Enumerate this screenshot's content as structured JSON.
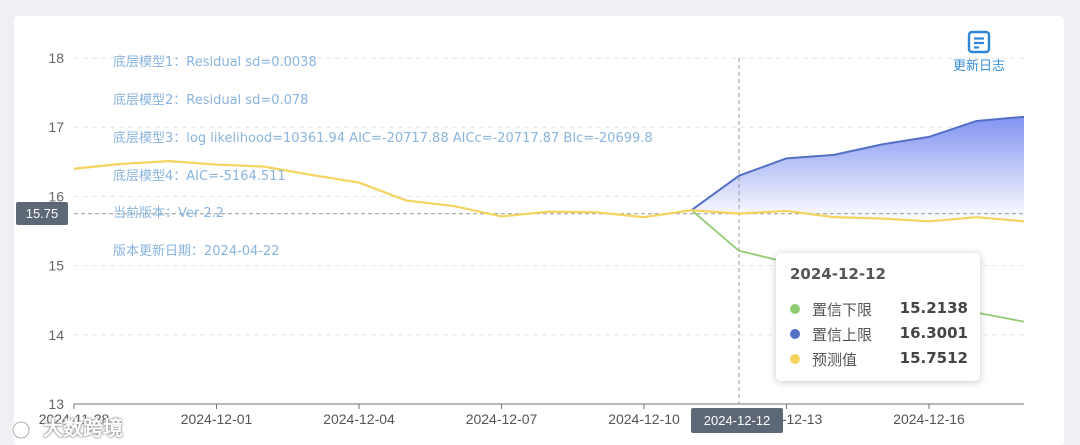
{
  "chart_data": {
    "type": "line",
    "xlabel": "",
    "ylabel": "",
    "ylim": [
      13,
      18
    ],
    "y_ticks": [
      13,
      14,
      15,
      16,
      17,
      18
    ],
    "x_tick_labels": [
      "2024-11-28",
      "2024-12-01",
      "2024-12-04",
      "2024-12-07",
      "2024-12-10",
      "2024-12-13",
      "2024-12-16"
    ],
    "grid": true,
    "notes": [
      "底层模型1：Residual sd=0.0038",
      "底层模型2：Residual sd=0.078",
      "底层模型3：log likelihood=10361.94 AIC=-20717.88 AICc=-20717.87 BIc=-20699.8",
      "底层模型4：AIC=-5164.511",
      "当前版本：Ver 2.2",
      "版本更新日期：2024-04-22"
    ],
    "series": [
      {
        "name": "预测值",
        "color": "#f4d35e",
        "points": [
          [
            "2024-11-28",
            16.4
          ],
          [
            "2024-11-29",
            16.47
          ],
          [
            "2024-11-30",
            16.51
          ],
          [
            "2024-12-01",
            16.46
          ],
          [
            "2024-12-02",
            16.43
          ],
          [
            "2024-12-03",
            16.31
          ],
          [
            "2024-12-04",
            16.2
          ],
          [
            "2024-12-05",
            15.94
          ],
          [
            "2024-12-06",
            15.86
          ],
          [
            "2024-12-07",
            15.71
          ],
          [
            "2024-12-08",
            15.78
          ],
          [
            "2024-12-09",
            15.77
          ],
          [
            "2024-12-10",
            15.7
          ],
          [
            "2024-12-11",
            15.8
          ],
          [
            "2024-12-12",
            15.7512
          ],
          [
            "2024-12-13",
            15.79
          ],
          [
            "2024-12-14",
            15.7
          ],
          [
            "2024-12-15",
            15.68
          ],
          [
            "2024-12-16",
            15.64
          ],
          [
            "2024-12-17",
            15.7
          ],
          [
            "2024-12-18",
            15.64
          ]
        ]
      },
      {
        "name": "置信上限",
        "color": "#5470c6",
        "points": [
          [
            "2024-12-11",
            15.8
          ],
          [
            "2024-12-12",
            16.3001
          ],
          [
            "2024-12-13",
            16.55
          ],
          [
            "2024-12-14",
            16.6
          ],
          [
            "2024-12-15",
            16.75
          ],
          [
            "2024-12-16",
            16.86
          ],
          [
            "2024-12-17",
            17.09
          ],
          [
            "2024-12-18",
            17.15
          ]
        ]
      },
      {
        "name": "置信下限",
        "color": "#91cc75",
        "points": [
          [
            "2024-12-11",
            15.8
          ],
          [
            "2024-12-12",
            15.2138
          ],
          [
            "2024-12-13",
            15.05
          ],
          [
            "2024-12-14",
            14.8
          ],
          [
            "2024-12-15",
            14.58
          ],
          [
            "2024-12-16",
            14.46
          ],
          [
            "2024-12-17",
            14.32
          ],
          [
            "2024-12-18",
            14.19
          ]
        ]
      }
    ],
    "crosshair": {
      "x": "2024-12-12",
      "y": 15.75
    }
  },
  "axis_pointer": {
    "y_label": "15.75",
    "x_label": "2024-12-12"
  },
  "tooltip": {
    "title": "2024-12-12",
    "rows": [
      {
        "name": "置信下限",
        "value": "15.2138",
        "color": "#91cc75"
      },
      {
        "name": "置信上限",
        "value": "16.3001",
        "color": "#5470c6"
      },
      {
        "name": "预测值",
        "value": "15.7512",
        "color": "#f4d35e"
      }
    ]
  },
  "toolbar": {
    "changelog_label": "更新日志",
    "changelog_icon": "document-icon"
  },
  "watermark": {
    "text": "大数跨境",
    "icon": "logo-icon"
  },
  "colors": {
    "band_top": "#7b8ef0",
    "band_bottom": "#ffffff",
    "grid": "#e3e6ec",
    "note_text": "#8ab4de"
  }
}
